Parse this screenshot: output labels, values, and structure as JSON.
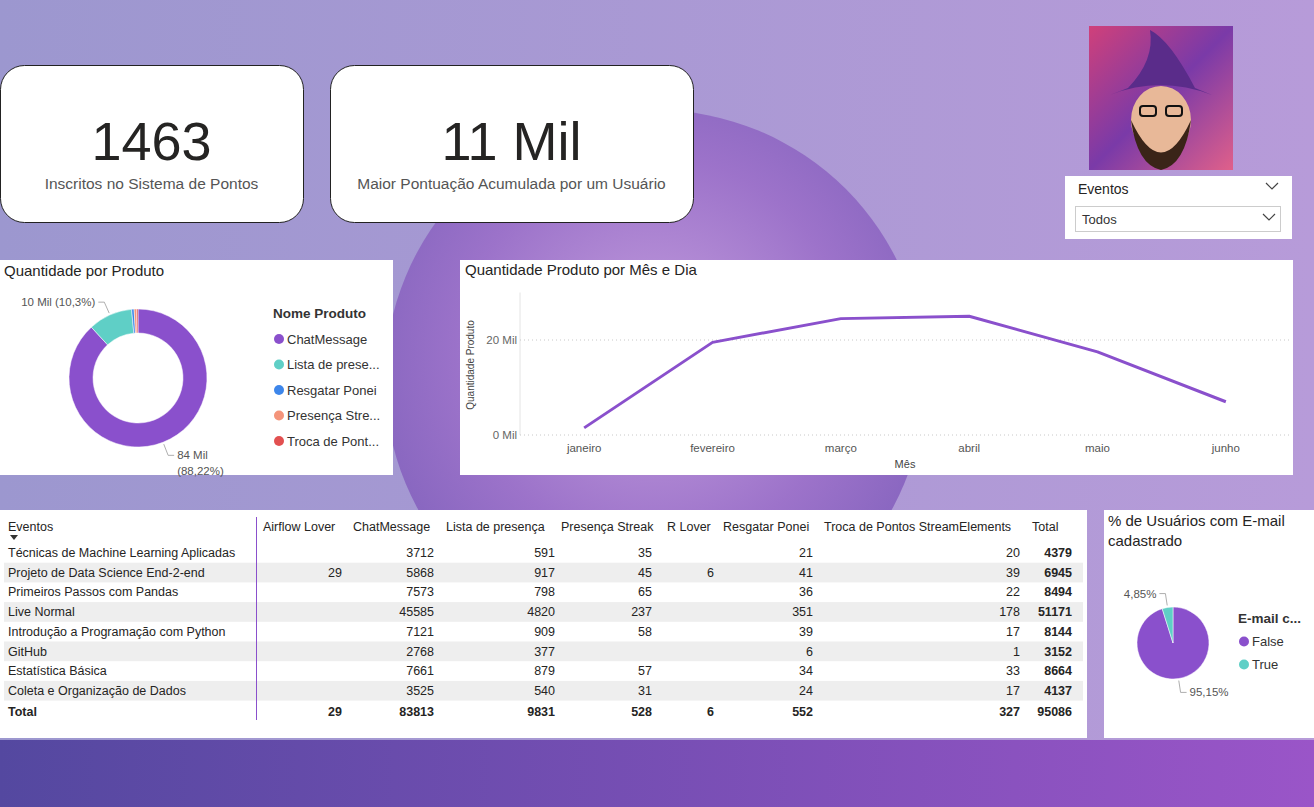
{
  "cards": [
    {
      "value": 1463,
      "label": "Inscritos no Sistema de Pontos"
    },
    {
      "value": 11000,
      "value_label": "11 Mil",
      "label": "Maior Pontuação Acumulada por um Usuário"
    }
  ],
  "slicer": {
    "title": "Eventos",
    "selected": "Todos"
  },
  "chart_data": [
    {
      "type": "donut",
      "title": "Quantidade por Produto",
      "legend_title": "Nome Produto",
      "legend": "right",
      "categories": [
        "ChatMessage",
        "Lista de prese...",
        "Resgatar Ponei",
        "Presença Stre...",
        "Troca de Pont..."
      ],
      "values": [
        83813,
        9831,
        552,
        528,
        327
      ],
      "value_labels": [
        "84 Mil (88,22%)",
        "10 Mil (10,3%)",
        null,
        null,
        null
      ],
      "colors": [
        "#8a50cc",
        "#5fcfc6",
        "#3d86ea",
        "#f4947a",
        "#e25050"
      ],
      "data_labels": true
    },
    {
      "type": "line",
      "title": "Quantidade Produto por Mês e Dia",
      "x_label": "Mês",
      "y_label": "Quantidade Produto",
      "categories": [
        "janeiro",
        "fevereiro",
        "março",
        "abril",
        "maio",
        "junho"
      ],
      "values": [
        1500,
        19500,
        24500,
        25000,
        17500,
        7000
      ],
      "color": "#8a50cc",
      "ylim": [
        0,
        30000
      ],
      "yticks": [
        {
          "value": 0,
          "label": "0 Mil"
        },
        {
          "value": 20000,
          "label": "20 Mil"
        }
      ],
      "grid": true
    },
    {
      "type": "pie",
      "title": "% de Usuários com E-mail cadastrado",
      "legend_title": "E-mail c...",
      "legend": "right",
      "categories": [
        "False",
        "True"
      ],
      "values": [
        95.15,
        4.85
      ],
      "value_labels": [
        "95,15%",
        "4,85%"
      ],
      "colors": [
        "#8a50cc",
        "#5fcfc6"
      ],
      "data_labels": true
    }
  ],
  "table": {
    "columns": [
      "Eventos",
      "Airflow Lover",
      "ChatMessage",
      "Lista de presença",
      "Presença Streak",
      "R Lover",
      "Resgatar Ponei",
      "Troca de Pontos StreamElements",
      "Total"
    ],
    "rows": [
      [
        "Técnicas de Machine Learning Aplicadas",
        null,
        3712,
        591,
        35,
        null,
        21,
        20,
        4379
      ],
      [
        "Projeto de Data Science End-2-end",
        29,
        5868,
        917,
        45,
        6,
        41,
        39,
        6945
      ],
      [
        "Primeiros Passos com Pandas",
        null,
        7573,
        798,
        65,
        null,
        36,
        22,
        8494
      ],
      [
        "Live Normal",
        null,
        45585,
        4820,
        237,
        null,
        351,
        178,
        51171
      ],
      [
        "Introdução a Programação com Python",
        null,
        7121,
        909,
        58,
        null,
        39,
        17,
        8144
      ],
      [
        "GitHub",
        null,
        2768,
        377,
        null,
        null,
        6,
        1,
        3152
      ],
      [
        "Estatística Básica",
        null,
        7661,
        879,
        57,
        null,
        34,
        33,
        8664
      ],
      [
        "Coleta e Organização de Dados",
        null,
        3525,
        540,
        31,
        null,
        24,
        17,
        4137
      ]
    ],
    "total": [
      "Total",
      29,
      83813,
      9831,
      528,
      6,
      552,
      327,
      95086
    ]
  }
}
